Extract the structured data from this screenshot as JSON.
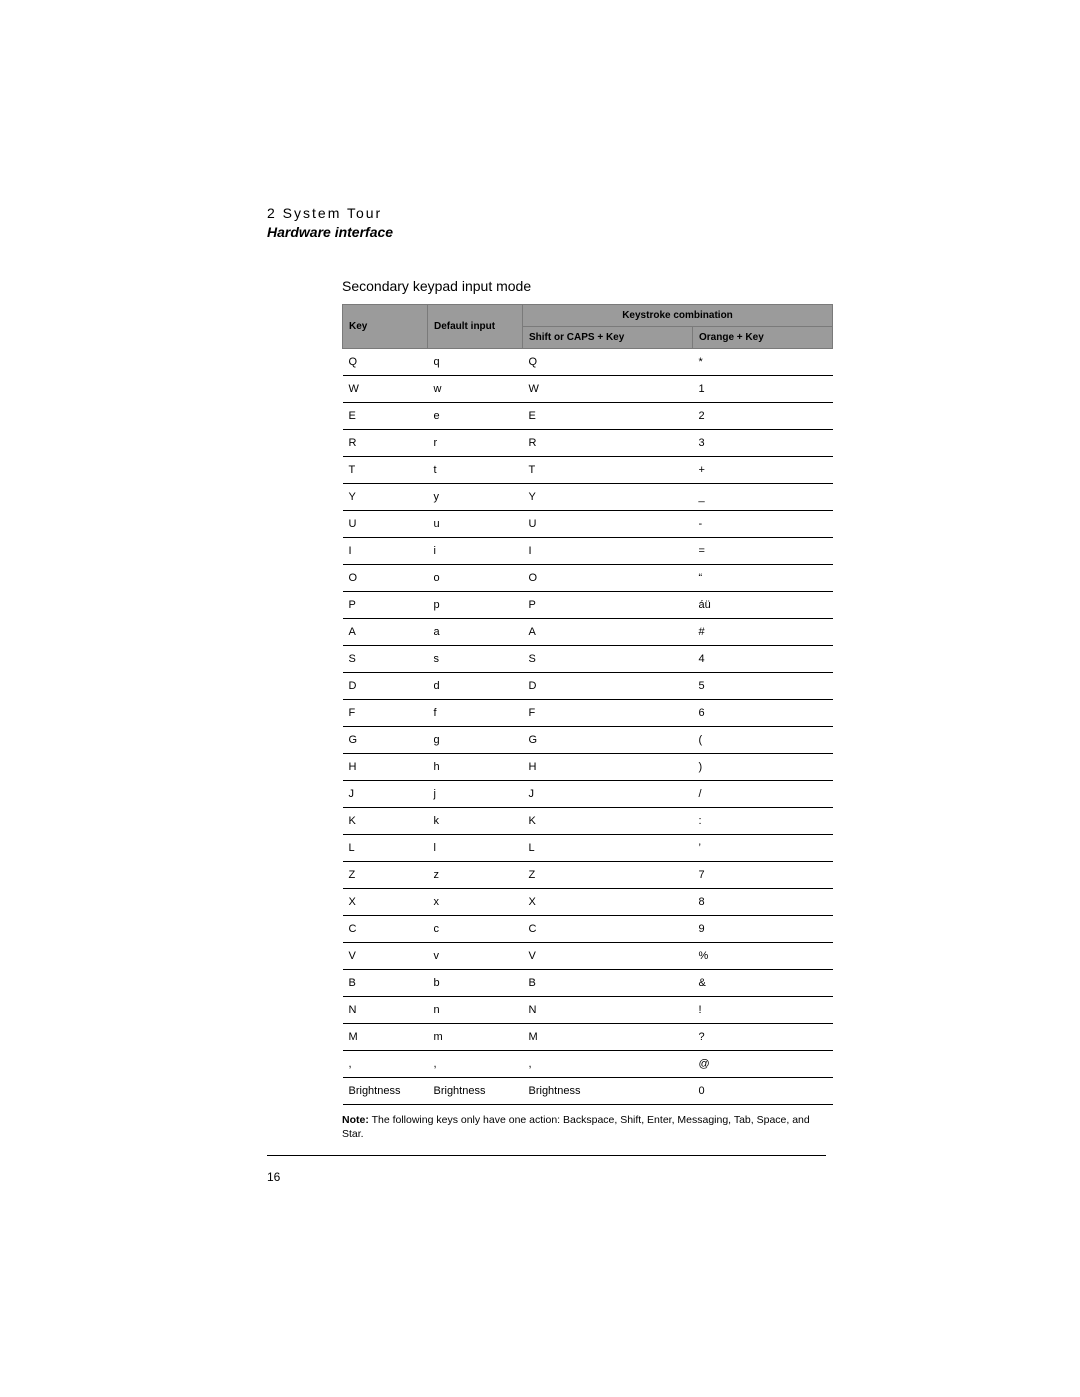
{
  "header": {
    "chapter": "2 System Tour",
    "section": "Hardware interface"
  },
  "subheading": "Secondary keypad input mode",
  "table": {
    "head": {
      "key": "Key",
      "default_input": "Default input",
      "keystroke_combo": "Keystroke combination",
      "shift_caps": "Shift or CAPS + Key",
      "orange": "Orange + Key"
    },
    "rows": [
      {
        "key": "Q",
        "def": "q",
        "shift": "Q",
        "orange": "*"
      },
      {
        "key": "W",
        "def": "w",
        "shift": "W",
        "orange": "1"
      },
      {
        "key": "E",
        "def": "e",
        "shift": "E",
        "orange": "2"
      },
      {
        "key": "R",
        "def": "r",
        "shift": "R",
        "orange": "3"
      },
      {
        "key": "T",
        "def": "t",
        "shift": "T",
        "orange": "+"
      },
      {
        "key": "Y",
        "def": "y",
        "shift": "Y",
        "orange": "_"
      },
      {
        "key": "U",
        "def": "u",
        "shift": "U",
        "orange": "-"
      },
      {
        "key": "I",
        "def": "i",
        "shift": "I",
        "orange": "="
      },
      {
        "key": "O",
        "def": "o",
        "shift": "O",
        "orange": "“"
      },
      {
        "key": "P",
        "def": "p",
        "shift": "P",
        "orange": "áü"
      },
      {
        "key": "A",
        "def": "a",
        "shift": "A",
        "orange": "#"
      },
      {
        "key": "S",
        "def": "s",
        "shift": "S",
        "orange": "4"
      },
      {
        "key": "D",
        "def": "d",
        "shift": "D",
        "orange": "5"
      },
      {
        "key": "F",
        "def": "f",
        "shift": "F",
        "orange": "6"
      },
      {
        "key": "G",
        "def": "g",
        "shift": "G",
        "orange": "("
      },
      {
        "key": "H",
        "def": "h",
        "shift": "H",
        "orange": ")"
      },
      {
        "key": "J",
        "def": "j",
        "shift": "J",
        "orange": "/"
      },
      {
        "key": "K",
        "def": "k",
        "shift": "K",
        "orange": ":"
      },
      {
        "key": "L",
        "def": "l",
        "shift": "L",
        "orange": "’"
      },
      {
        "key": "Z",
        "def": "z",
        "shift": "Z",
        "orange": "7"
      },
      {
        "key": "X",
        "def": "x",
        "shift": "X",
        "orange": "8"
      },
      {
        "key": "C",
        "def": "c",
        "shift": "C",
        "orange": "9"
      },
      {
        "key": "V",
        "def": "v",
        "shift": "V",
        "orange": "%"
      },
      {
        "key": "B",
        "def": "b",
        "shift": "B",
        "orange": "&"
      },
      {
        "key": "N",
        "def": "n",
        "shift": "N",
        "orange": "!"
      },
      {
        "key": "M",
        "def": "m",
        "shift": "M",
        "orange": "?"
      },
      {
        "key": ",",
        "def": ",",
        "shift": ",",
        "orange": "@"
      },
      {
        "key": "Brightness",
        "def": "Brightness",
        "shift": "Brightness",
        "orange": "0"
      }
    ]
  },
  "note": {
    "label": "Note:",
    "text": " The following keys only have one action: Backspace, Shift, Enter, Messaging, Tab, Space, and Star."
  },
  "page_number": "16"
}
